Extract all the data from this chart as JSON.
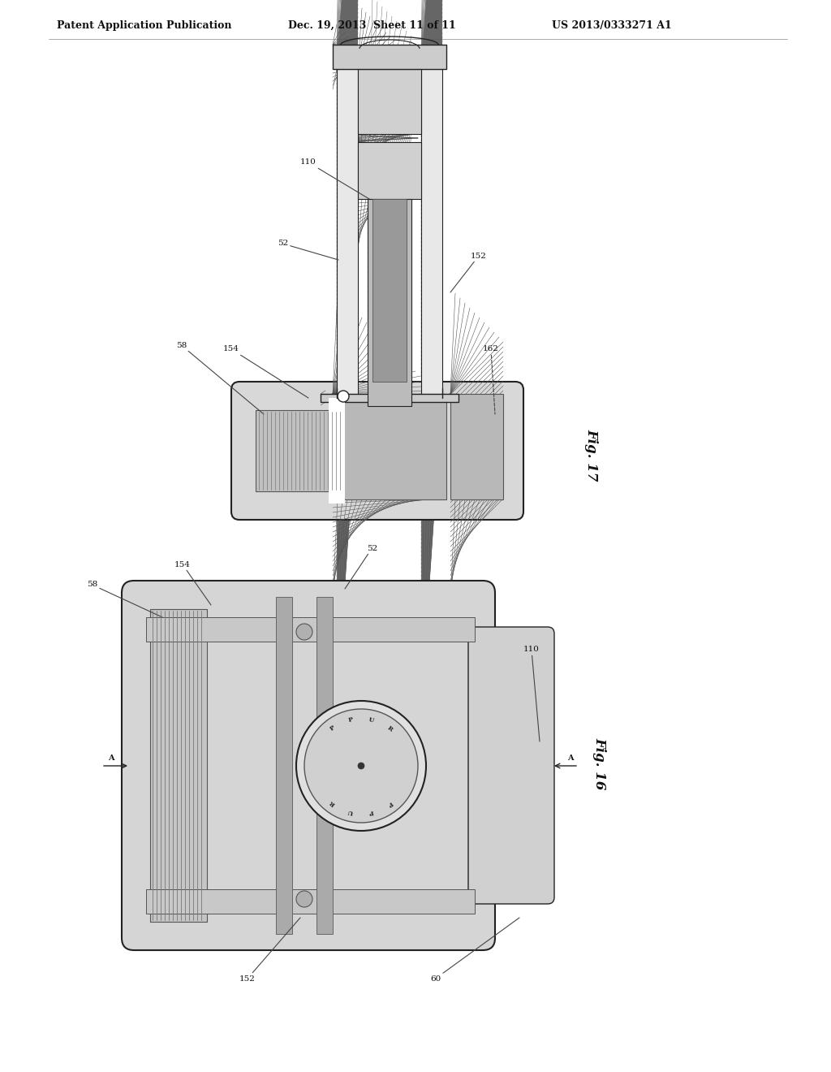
{
  "background_color": "#ffffff",
  "header_left": "Patent Application Publication",
  "header_center": "Dec. 19, 2013  Sheet 11 of 11",
  "header_right": "US 2013/0333271 A1",
  "fig17_label": "Fig. 17",
  "fig16_label": "Fig. 16",
  "header_fontsize": 9,
  "label_fontsize": 7.5,
  "hatch_color": "#555555",
  "line_color": "#222222",
  "light_gray": "#e8e8e8",
  "mid_gray": "#cccccc",
  "dark_gray": "#888888"
}
